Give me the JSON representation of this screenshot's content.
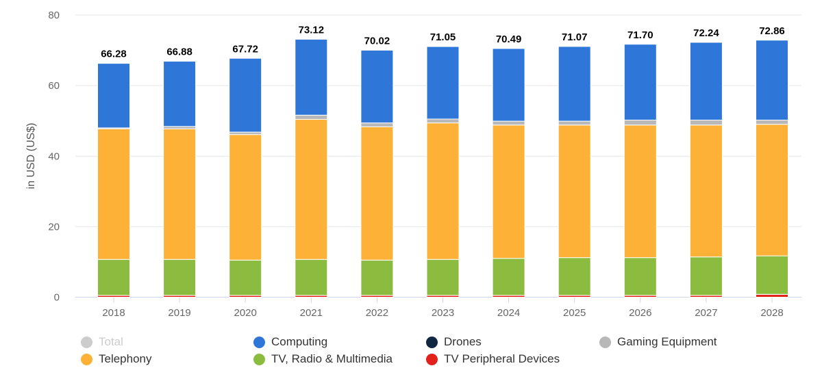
{
  "chart_data": {
    "type": "bar",
    "stacked": true,
    "ylabel": "in USD (US$)",
    "ylim": [
      0,
      80
    ],
    "yticks": [
      0,
      20,
      40,
      60,
      80
    ],
    "grid": true,
    "legend_position": "bottom",
    "categories": [
      "2018",
      "2019",
      "2020",
      "2021",
      "2022",
      "2023",
      "2024",
      "2025",
      "2026",
      "2027",
      "2028"
    ],
    "totals": [
      "66.28",
      "66.88",
      "67.72",
      "73.12",
      "70.02",
      "71.05",
      "70.49",
      "71.07",
      "71.70",
      "72.24",
      "72.86"
    ],
    "series": [
      {
        "name": "TV Peripheral Devices",
        "color": "#e2211c",
        "values": [
          0.5,
          0.5,
          0.5,
          0.5,
          0.5,
          0.5,
          0.5,
          0.5,
          0.5,
          0.5,
          0.8
        ]
      },
      {
        "name": "Drones",
        "color": "#0f2740",
        "values": [
          0.02,
          0.02,
          0.02,
          0.02,
          0.02,
          0.02,
          0.02,
          0.02,
          0.02,
          0.02,
          0.02
        ]
      },
      {
        "name": "TV, Radio & Multimedia",
        "color": "#8bbc3f",
        "values": [
          10.2,
          10.2,
          10.0,
          10.2,
          10.0,
          10.2,
          10.5,
          10.7,
          10.7,
          10.9,
          10.9
        ]
      },
      {
        "name": "Telephony",
        "color": "#fdb137",
        "values": [
          37.0,
          37.0,
          35.6,
          39.7,
          37.8,
          38.7,
          37.8,
          37.6,
          37.6,
          37.4,
          37.3
        ]
      },
      {
        "name": "Gaming Equipment",
        "color": "#b8b8b8",
        "values": [
          0.3,
          0.7,
          0.7,
          1.2,
          1.1,
          1.1,
          1.1,
          1.1,
          1.4,
          1.4,
          1.2
        ]
      },
      {
        "name": "Computing",
        "color": "#2e77d8",
        "values": [
          18.28,
          18.48,
          20.92,
          21.52,
          20.62,
          20.55,
          20.59,
          21.17,
          21.5,
          22.04,
          22.66
        ]
      }
    ],
    "legend": [
      {
        "name": "Total",
        "color": "#cccccc",
        "hidden": true
      },
      {
        "name": "Computing",
        "color": "#2e77d8"
      },
      {
        "name": "Drones",
        "color": "#0f2740"
      },
      {
        "name": "Gaming Equipment",
        "color": "#b8b8b8"
      },
      {
        "name": "Telephony",
        "color": "#fdb137"
      },
      {
        "name": "TV, Radio & Multimedia",
        "color": "#8bbc3f"
      },
      {
        "name": "TV Peripheral Devices",
        "color": "#e2211c"
      }
    ]
  }
}
